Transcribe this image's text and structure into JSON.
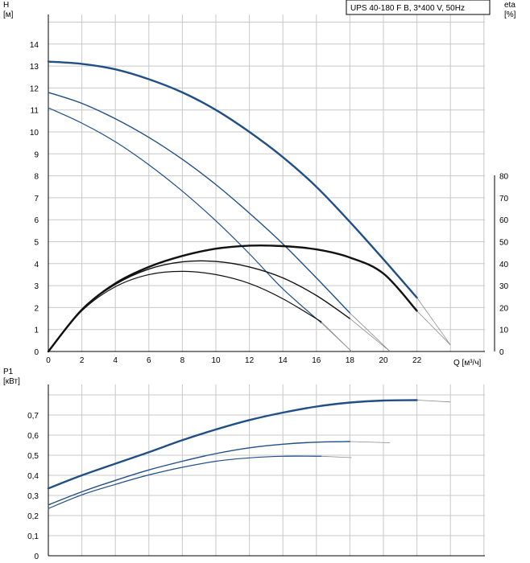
{
  "legend_title": "UPS 40-180 F B, 3*400 V, 50Hz",
  "colors": {
    "curve_blue": "#1f4f86",
    "eff_black": "#111111",
    "grid": "#c8c8c8",
    "extension": "#8a8a8a"
  },
  "chart_data": [
    {
      "type": "line",
      "panel": "head",
      "ylabel": "H",
      "yunit": "[м]",
      "y2label": "eta",
      "y2unit": "[%]",
      "xlabel": "Q [м³/ч]",
      "xlim": [
        0,
        26
      ],
      "ylim": [
        0,
        15
      ],
      "y2lim": [
        0,
        150
      ],
      "x_ticks": [
        0,
        2,
        4,
        6,
        8,
        10,
        12,
        14,
        16,
        18,
        20,
        22
      ],
      "y_ticks": [
        0,
        1,
        2,
        3,
        4,
        5,
        6,
        7,
        8,
        9,
        10,
        11,
        12,
        13,
        14
      ],
      "y2_ticks": [
        0,
        10,
        20,
        30,
        40,
        50,
        60,
        70,
        80
      ],
      "grid": true,
      "series": [
        {
          "kind": "head",
          "speed": "high",
          "x": [
            0,
            2,
            4,
            6,
            8,
            10,
            12,
            14,
            16,
            18,
            20,
            22
          ],
          "y": [
            13.2,
            13.1,
            12.85,
            12.4,
            11.8,
            11.0,
            10.0,
            8.85,
            7.5,
            5.9,
            4.2,
            2.45
          ],
          "ext_x": [
            22,
            24
          ],
          "ext_y": [
            2.45,
            0.3
          ]
        },
        {
          "kind": "head",
          "speed": "medium",
          "x": [
            0,
            2,
            4,
            6,
            8,
            10,
            12,
            14,
            16,
            18
          ],
          "y": [
            11.8,
            11.3,
            10.6,
            9.75,
            8.75,
            7.6,
            6.3,
            4.9,
            3.35,
            1.75
          ],
          "ext_x": [
            18,
            20.4
          ],
          "ext_y": [
            1.75,
            0
          ]
        },
        {
          "kind": "head",
          "speed": "low",
          "x": [
            0,
            2,
            4,
            6,
            8,
            10,
            12,
            14,
            16.3
          ],
          "y": [
            11.1,
            10.4,
            9.55,
            8.5,
            7.3,
            5.95,
            4.45,
            2.85,
            1.3
          ],
          "ext_x": [
            16.3,
            18.1
          ],
          "ext_y": [
            1.3,
            0
          ]
        },
        {
          "kind": "eta",
          "speed": "high",
          "x": [
            0,
            2,
            4,
            6,
            8,
            10,
            12,
            14,
            16,
            18,
            20,
            22
          ],
          "y": [
            0,
            19,
            31,
            38.5,
            43.5,
            46.8,
            48.2,
            48,
            46.5,
            42.8,
            35.5,
            18.5
          ],
          "ext_x": [
            22,
            24
          ],
          "ext_y": [
            18.5,
            3
          ]
        },
        {
          "kind": "eta",
          "speed": "medium",
          "x": [
            0,
            2,
            4,
            6,
            8,
            10,
            12,
            14,
            16,
            18
          ],
          "y": [
            0,
            19,
            30.5,
            37.5,
            40.8,
            41,
            38.5,
            33.5,
            25.5,
            15
          ],
          "ext_x": [
            18,
            20.4
          ],
          "ext_y": [
            15,
            0
          ]
        },
        {
          "kind": "eta",
          "speed": "low",
          "x": [
            0,
            2,
            4,
            6,
            8,
            10,
            12,
            14,
            16.3
          ],
          "y": [
            0,
            18.5,
            29.5,
            35,
            36.5,
            35,
            31,
            24,
            13.5
          ],
          "ext_x": [
            16.3,
            18.1
          ],
          "ext_y": [
            13.5,
            0
          ]
        }
      ]
    },
    {
      "type": "line",
      "panel": "power",
      "ylabel": "P1",
      "yunit": "[кВт]",
      "xlim": [
        0,
        26
      ],
      "ylim": [
        0,
        0.8
      ],
      "y_ticks": [
        "0",
        "0,1",
        "0,2",
        "0,3",
        "0,4",
        "0,5",
        "0,6",
        "0,7"
      ],
      "grid": true,
      "series": [
        {
          "speed": "high",
          "x": [
            0,
            2,
            4,
            6,
            8,
            10,
            12,
            14,
            16,
            18,
            20,
            22
          ],
          "y": [
            0.335,
            0.4,
            0.458,
            0.515,
            0.575,
            0.628,
            0.675,
            0.712,
            0.742,
            0.762,
            0.772,
            0.774
          ],
          "ext_x": [
            22,
            24
          ],
          "ext_y": [
            0.774,
            0.765
          ]
        },
        {
          "speed": "medium",
          "x": [
            0,
            2,
            4,
            6,
            8,
            10,
            12,
            14,
            16,
            18
          ],
          "y": [
            0.253,
            0.318,
            0.375,
            0.427,
            0.47,
            0.508,
            0.537,
            0.555,
            0.565,
            0.568
          ],
          "ext_x": [
            18,
            20.4
          ],
          "ext_y": [
            0.568,
            0.562
          ]
        },
        {
          "speed": "low",
          "x": [
            0,
            2,
            4,
            6,
            8,
            10,
            12,
            14,
            16.3
          ],
          "y": [
            0.235,
            0.303,
            0.355,
            0.402,
            0.44,
            0.47,
            0.487,
            0.495,
            0.495
          ],
          "ext_x": [
            16.3,
            18.1
          ],
          "ext_y": [
            0.495,
            0.488
          ]
        }
      ]
    }
  ]
}
